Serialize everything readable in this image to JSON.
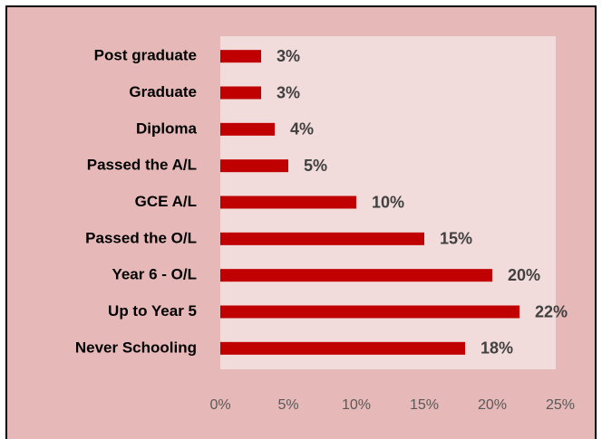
{
  "chart_data": {
    "type": "bar",
    "orientation": "horizontal",
    "categories": [
      "Post graduate",
      "Graduate",
      "Diploma",
      "Passed the A/L",
      "GCE A/L",
      "Passed the O/L",
      "Year 6 - O/L",
      "Up to Year 5",
      "Never Schooling"
    ],
    "values": [
      3,
      3,
      4,
      5,
      10,
      15,
      20,
      22,
      18
    ],
    "value_labels": [
      "3%",
      "3%",
      "4%",
      "5%",
      "10%",
      "15%",
      "20%",
      "22%",
      "18%"
    ],
    "color": "#c00000",
    "xlim": [
      0,
      25
    ],
    "xticks": [
      {
        "value": 0,
        "label": "0%"
      },
      {
        "value": 5,
        "label": "5%"
      },
      {
        "value": 10,
        "label": "10%"
      },
      {
        "value": 15,
        "label": "15%"
      },
      {
        "value": 20,
        "label": "20%"
      },
      {
        "value": 25,
        "label": "25%"
      }
    ]
  }
}
